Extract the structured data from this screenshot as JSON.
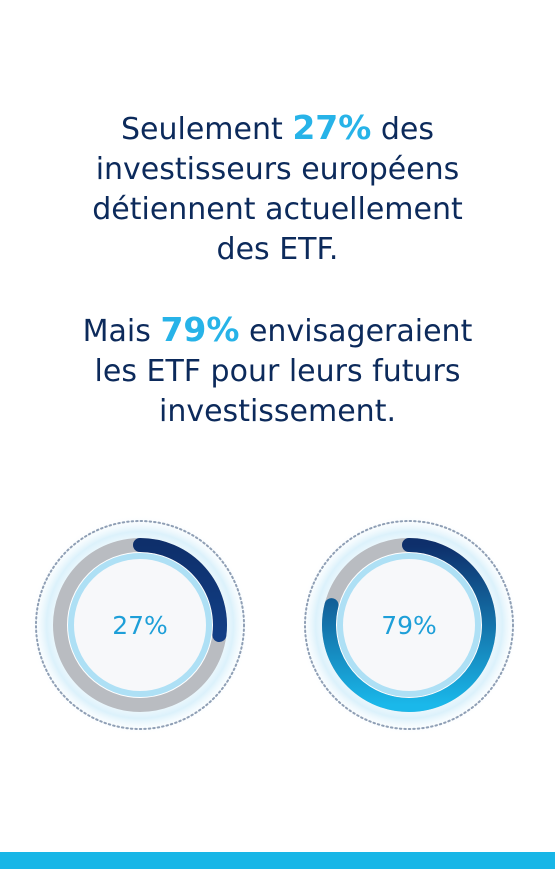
{
  "statements": [
    {
      "lines": [
        {
          "before": "Seulement ",
          "highlight": "27%",
          "after": " des"
        },
        {
          "before": "investisseurs européens",
          "highlight": "",
          "after": ""
        },
        {
          "before": "détiennent actuellement",
          "highlight": "",
          "after": ""
        },
        {
          "before": "des ETF.",
          "highlight": "",
          "after": ""
        }
      ]
    },
    {
      "lines": [
        {
          "before": "Mais ",
          "highlight": "79%",
          "after": " envisageraient"
        },
        {
          "before": "les ETF pour leurs futurs",
          "highlight": "",
          "after": ""
        },
        {
          "before": "investissement.",
          "highlight": "",
          "after": ""
        }
      ]
    }
  ],
  "colors": {
    "text": "#0c2a5b",
    "highlight": "#27b3e8",
    "track": "#b9bcc1",
    "arc_dark": "#0e2f6b",
    "arc_light": "#1ab8ea",
    "glow": "#bfe6f8",
    "bar": "#17b6e7"
  },
  "chart_data": [
    {
      "type": "pie",
      "style": "donut-gauge",
      "value": 27,
      "max": 100,
      "label": "27%"
    },
    {
      "type": "pie",
      "style": "donut-gauge",
      "value": 79,
      "max": 100,
      "label": "79%"
    }
  ]
}
